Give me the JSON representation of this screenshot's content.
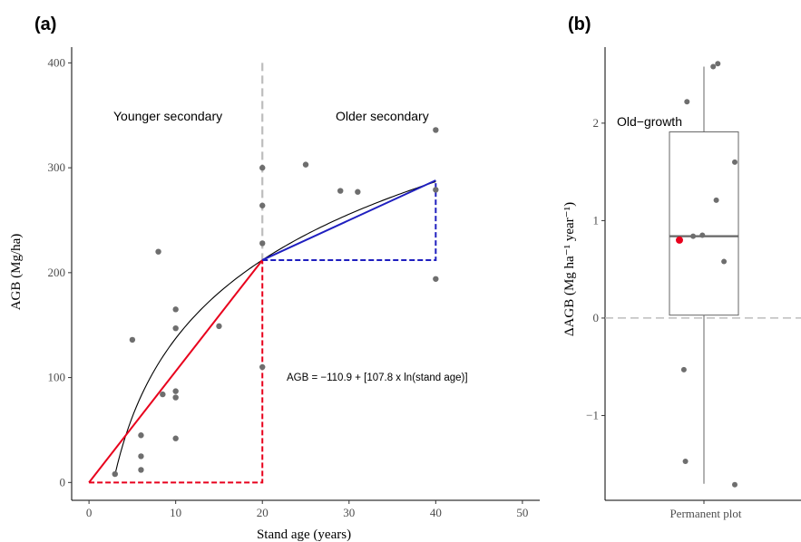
{
  "chart_data": [
    {
      "panel_label": "(a)",
      "type": "scatter",
      "xlabel": "Stand age (years)",
      "ylabel": "AGB (Mg/ha)",
      "xlim": [
        -2,
        52
      ],
      "ylim": [
        -17,
        415
      ],
      "xticks": [
        0,
        10,
        20,
        30,
        40,
        50
      ],
      "yticks": [
        0,
        100,
        200,
        300,
        400
      ],
      "point_color": "#6e6e6e",
      "points": [
        [
          3,
          8
        ],
        [
          5,
          136
        ],
        [
          6,
          45
        ],
        [
          6,
          25
        ],
        [
          6,
          12
        ],
        [
          8,
          220
        ],
        [
          8.5,
          84
        ],
        [
          10,
          165
        ],
        [
          10,
          147
        ],
        [
          10,
          87
        ],
        [
          10,
          81
        ],
        [
          10,
          42
        ],
        [
          15,
          149
        ],
        [
          20,
          300
        ],
        [
          20,
          264
        ],
        [
          20,
          228
        ],
        [
          20,
          110
        ],
        [
          25,
          303
        ],
        [
          29,
          278
        ],
        [
          31,
          277
        ],
        [
          40,
          336
        ],
        [
          40,
          279
        ],
        [
          40,
          194
        ]
      ],
      "fit_curve": {
        "intercept": -110.9,
        "slope": 107.8,
        "x_from": 3,
        "x_to": 40,
        "color": "#000000"
      },
      "equation": "AGB = −110.9 + [107.8 x ln(stand age)]",
      "divider_x": 20,
      "divider_color": "#bdbdbd",
      "regions": [
        "Younger secondary",
        "Older secondary"
      ],
      "younger_segment": {
        "from": [
          0,
          0
        ],
        "to": [
          20,
          212
        ],
        "color": "#e8001c"
      },
      "older_segment": {
        "from": [
          20,
          212
        ],
        "to": [
          40,
          288
        ],
        "color": "#1f1fbf"
      }
    },
    {
      "panel_label": "(b)",
      "type": "box",
      "category": "Permanent plot",
      "ylabel": "ΔAGB (Mg ha⁻¹ year⁻¹)",
      "ylim": [
        -1.87,
        2.78
      ],
      "yticks": [
        -1,
        0,
        1,
        2
      ],
      "annotation": "Old−growth",
      "box": {
        "q1": 0.03,
        "median": 0.84,
        "q3": 1.91,
        "whisker_low": -1.7,
        "whisker_high": 2.58
      },
      "points": [
        [
          -0.055,
          2.22
        ],
        [
          0.03,
          2.58
        ],
        [
          0.045,
          2.61
        ],
        [
          -0.035,
          0.84
        ],
        [
          -0.005,
          0.85
        ],
        [
          0.04,
          1.21
        ],
        [
          0.1,
          1.6
        ],
        [
          0.065,
          0.58
        ],
        [
          -0.065,
          -0.53
        ],
        [
          -0.06,
          -1.47
        ],
        [
          0.1,
          -1.71
        ]
      ],
      "mean": 0.8,
      "mean_color": "#e8001c",
      "zero_line": 0
    }
  ]
}
